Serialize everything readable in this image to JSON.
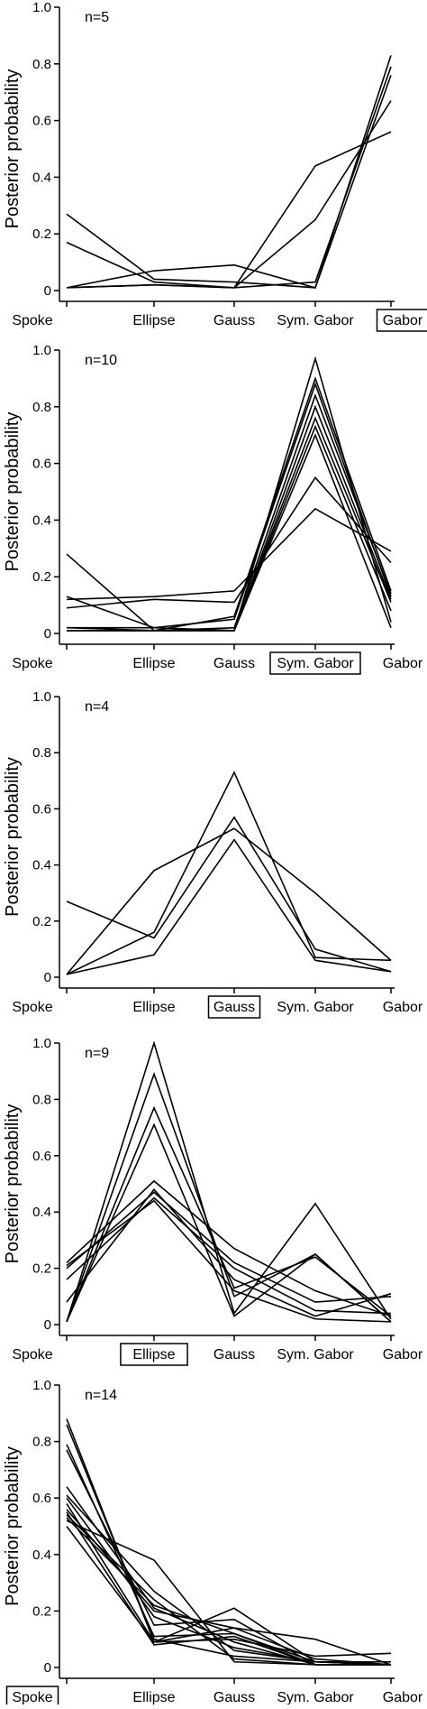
{
  "chart_data": [
    {
      "type": "line",
      "annotation": "n=5",
      "ylabel": "Posterior probability",
      "categories": [
        "Spoke",
        "Ellipse",
        "Gauss",
        "Sym. Gabor",
        "Gabor"
      ],
      "highlighted_category": "Gabor",
      "ylim": [
        0,
        1.0
      ],
      "yticks": [
        "0",
        "0.2",
        "0.4",
        "0.6",
        "0.8",
        "1.0"
      ],
      "series": [
        {
          "values": [
            0.27,
            0.04,
            0.03,
            0.01,
            0.83
          ]
        },
        {
          "values": [
            0.17,
            0.03,
            0.01,
            0.03,
            0.79
          ]
        },
        {
          "values": [
            0.01,
            0.07,
            0.09,
            0.01,
            0.76
          ]
        },
        {
          "values": [
            0.01,
            0.02,
            0.01,
            0.25,
            0.67
          ]
        },
        {
          "values": [
            0.01,
            0.02,
            0.01,
            0.44,
            0.56
          ]
        }
      ]
    },
    {
      "type": "line",
      "annotation": "n=10",
      "ylabel": "Posterior probability",
      "categories": [
        "Spoke",
        "Ellipse",
        "Gauss",
        "Sym. Gabor",
        "Gabor"
      ],
      "highlighted_category": "Sym. Gabor",
      "ylim": [
        0,
        1.0
      ],
      "yticks": [
        "0",
        "0.2",
        "0.4",
        "0.6",
        "0.8",
        "1.0"
      ],
      "series": [
        {
          "values": [
            0.28,
            0.01,
            0.01,
            0.7,
            0.02
          ]
        },
        {
          "values": [
            0.13,
            0.02,
            0.01,
            0.97,
            0.04
          ]
        },
        {
          "values": [
            0.09,
            0.12,
            0.11,
            0.55,
            0.25
          ]
        },
        {
          "values": [
            0.12,
            0.13,
            0.15,
            0.44,
            0.29
          ]
        },
        {
          "values": [
            0.02,
            0.01,
            0.06,
            0.9,
            0.15
          ]
        },
        {
          "values": [
            0.02,
            0.02,
            0.05,
            0.88,
            0.13
          ]
        },
        {
          "values": [
            0.01,
            0.01,
            0.02,
            0.84,
            0.14
          ]
        },
        {
          "values": [
            0.01,
            0.01,
            0.01,
            0.8,
            0.12
          ]
        },
        {
          "values": [
            0.01,
            0.01,
            0.01,
            0.76,
            0.11
          ]
        },
        {
          "values": [
            0.01,
            0.01,
            0.01,
            0.73,
            0.08
          ]
        }
      ]
    },
    {
      "type": "line",
      "annotation": "n=4",
      "ylabel": "Posterior probability",
      "categories": [
        "Spoke",
        "Ellipse",
        "Gauss",
        "Sym. Gabor",
        "Gabor"
      ],
      "highlighted_category": "Gauss",
      "ylim": [
        0,
        1.0
      ],
      "yticks": [
        "0",
        "0.2",
        "0.4",
        "0.6",
        "0.8",
        "1.0"
      ],
      "series": [
        {
          "values": [
            0.27,
            0.14,
            0.57,
            0.1,
            0.02
          ]
        },
        {
          "values": [
            0.01,
            0.38,
            0.53,
            0.3,
            0.06
          ]
        },
        {
          "values": [
            0.01,
            0.16,
            0.73,
            0.07,
            0.06
          ]
        },
        {
          "values": [
            0.01,
            0.08,
            0.49,
            0.06,
            0.02
          ]
        }
      ]
    },
    {
      "type": "line",
      "annotation": "n=9",
      "ylabel": "Posterior probability",
      "categories": [
        "Spoke",
        "Ellipse",
        "Gauss",
        "Sym. Gabor",
        "Gabor"
      ],
      "highlighted_category": "Ellipse",
      "ylim": [
        0,
        1.0
      ],
      "yticks": [
        "0",
        "0.2",
        "0.4",
        "0.6",
        "0.8",
        "1.0"
      ],
      "series": [
        {
          "values": [
            0.01,
            1.0,
            0.04,
            0.43,
            0.02
          ]
        },
        {
          "values": [
            0.01,
            0.89,
            0.1,
            0.25,
            0.01
          ]
        },
        {
          "values": [
            0.01,
            0.77,
            0.13,
            0.24,
            0.03
          ]
        },
        {
          "values": [
            0.01,
            0.71,
            0.03,
            0.25,
            0.01
          ]
        },
        {
          "values": [
            0.22,
            0.51,
            0.27,
            0.12,
            0.03
          ]
        },
        {
          "values": [
            0.2,
            0.47,
            0.22,
            0.08,
            0.1
          ]
        },
        {
          "values": [
            0.16,
            0.45,
            0.2,
            0.05,
            0.04
          ]
        },
        {
          "values": [
            0.08,
            0.48,
            0.16,
            0.03,
            0.11
          ]
        },
        {
          "values": [
            0.21,
            0.44,
            0.12,
            0.02,
            0.01
          ]
        }
      ]
    },
    {
      "type": "line",
      "annotation": "n=14",
      "ylabel": "Posterior probability",
      "categories": [
        "Spoke",
        "Ellipse",
        "Gauss",
        "Sym. Gabor",
        "Gabor"
      ],
      "highlighted_category": "Spoke",
      "ylim": [
        0,
        0.9
      ],
      "yticks": [
        "0",
        "0.2",
        "0.4",
        "0.6",
        "0.8",
        "1.0"
      ],
      "series": [
        {
          "values": [
            0.88,
            0.09,
            0.21,
            0.02,
            0.01
          ]
        },
        {
          "values": [
            0.86,
            0.1,
            0.04,
            0.02,
            0.01
          ]
        },
        {
          "values": [
            0.79,
            0.11,
            0.12,
            0.02,
            0.01
          ]
        },
        {
          "values": [
            0.77,
            0.15,
            0.17,
            0.01,
            0.01
          ]
        },
        {
          "values": [
            0.64,
            0.21,
            0.09,
            0.01,
            0.01
          ]
        },
        {
          "values": [
            0.61,
            0.27,
            0.06,
            0.02,
            0.02
          ]
        },
        {
          "values": [
            0.58,
            0.09,
            0.1,
            0.04,
            0.05
          ]
        },
        {
          "values": [
            0.56,
            0.2,
            0.14,
            0.1,
            0.01
          ]
        },
        {
          "values": [
            0.54,
            0.24,
            0.03,
            0.01,
            0.01
          ]
        },
        {
          "values": [
            0.52,
            0.38,
            0.02,
            0.01,
            0.01
          ]
        },
        {
          "values": [
            0.5,
            0.09,
            0.14,
            0.03,
            0.01
          ]
        },
        {
          "values": [
            0.55,
            0.08,
            0.11,
            0.01,
            0.01
          ]
        },
        {
          "values": [
            0.6,
            0.18,
            0.07,
            0.02,
            0.02
          ]
        },
        {
          "values": [
            0.53,
            0.22,
            0.12,
            0.01,
            0.01
          ]
        }
      ]
    }
  ]
}
